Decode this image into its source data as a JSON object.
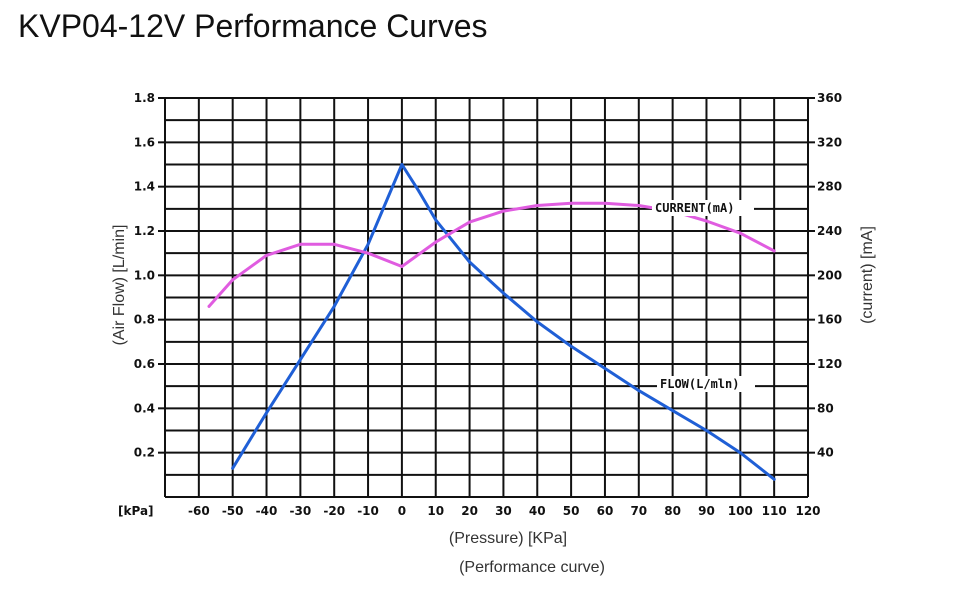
{
  "page": {
    "title": "KVP04-12V Performance Curves"
  },
  "chart_data": {
    "type": "line",
    "x_unit_label": "[kPa]",
    "xlabel": "(Pressure) [KPa]",
    "caption": "(Performance curve)",
    "ylabel_left": "(Air Flow) [L/min]",
    "ylabel_right": "(current) [mA]",
    "xlim": [
      -70,
      120
    ],
    "ylim_left": [
      0,
      1.8
    ],
    "ylim_right": [
      0,
      360
    ],
    "x_ticks": [
      -60,
      -50,
      -40,
      -30,
      -20,
      -10,
      0,
      10,
      20,
      30,
      40,
      50,
      60,
      70,
      80,
      90,
      100,
      110,
      120
    ],
    "x_tick_labels": [
      "-60",
      "-50",
      "-40",
      "-30",
      "-20",
      "-10",
      "0",
      "10",
      "20",
      "30",
      "40",
      "50",
      "60",
      "70",
      "80",
      "90",
      "100",
      "110",
      "120"
    ],
    "y_left_ticks": [
      0.2,
      0.4,
      0.6,
      0.8,
      1.0,
      1.2,
      1.4,
      1.6,
      1.8
    ],
    "y_left_tick_labels": [
      "0.2",
      "0.4",
      "0.6",
      "0.8",
      "1.0",
      "1.2",
      "1.4",
      "1.6",
      "1.8"
    ],
    "y_right_ticks": [
      40,
      80,
      120,
      160,
      200,
      240,
      280,
      320,
      360
    ],
    "y_right_tick_labels": [
      "40",
      "80",
      "120",
      "160",
      "200",
      "240",
      "280",
      "320",
      "360"
    ],
    "grid": true,
    "series": [
      {
        "name": "FLOW(L/min)",
        "axis": "left",
        "color": "#1f5fd6",
        "x": [
          -50,
          -40,
          -30,
          -20,
          -10,
          0,
          5,
          10,
          20,
          30,
          40,
          50,
          60,
          70,
          80,
          90,
          100,
          110
        ],
        "y": [
          0.13,
          0.38,
          0.62,
          0.86,
          1.14,
          1.5,
          1.38,
          1.25,
          1.06,
          0.92,
          0.79,
          0.68,
          0.58,
          0.48,
          0.39,
          0.3,
          0.2,
          0.08
        ]
      },
      {
        "name": "CURRENT(mA)",
        "axis": "right",
        "color": "#e05ce0",
        "x": [
          -57,
          -50,
          -40,
          -30,
          -20,
          -10,
          0,
          10,
          20,
          30,
          40,
          50,
          60,
          70,
          80,
          90,
          100,
          110
        ],
        "y": [
          172,
          196,
          218,
          228,
          228,
          220,
          208,
          230,
          248,
          258,
          263,
          265,
          265,
          263,
          258,
          249,
          238,
          222
        ]
      }
    ],
    "annotations": [
      {
        "text": "CURRENT(mA)",
        "series": "CURRENT(mA)"
      },
      {
        "text": "FLOW(L/mln)",
        "series": "FLOW(L/min)"
      }
    ]
  }
}
